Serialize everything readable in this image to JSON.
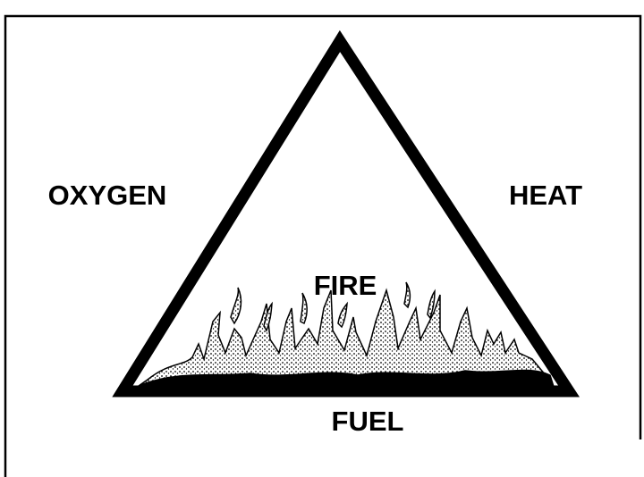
{
  "nodes": [
    {
      "label": "OXYGEN"
    },
    {
      "label": "HEAT"
    },
    {
      "label": "FIRE"
    },
    {
      "label": "FUEL"
    }
  ]
}
